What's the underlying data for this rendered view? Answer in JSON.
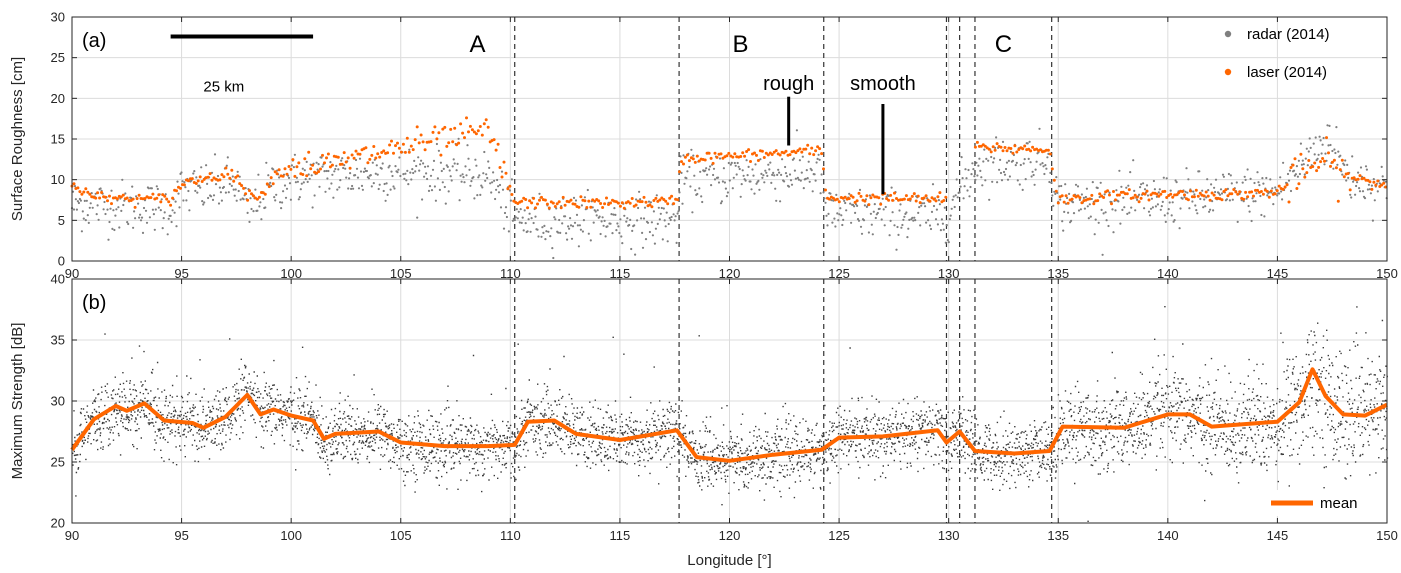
{
  "chart_data": [
    {
      "type": "scatter",
      "panel_label": "(a)",
      "ylabel": "Surface Roughness [cm]",
      "xlim": [
        90,
        150
      ],
      "ylim": [
        0,
        30
      ],
      "xticks": [
        90,
        95,
        100,
        105,
        110,
        115,
        120,
        125,
        130,
        135,
        140,
        145,
        150
      ],
      "yticks": [
        0,
        5,
        10,
        15,
        20,
        25,
        30
      ],
      "grid": true,
      "legend_position": "top-right",
      "legend": [
        {
          "name": "radar (2014)",
          "color": "#7f7f7f"
        },
        {
          "name": "laser (2014)",
          "color": "#ff6600"
        }
      ],
      "region_labels": [
        {
          "text": "A",
          "x": 108.5,
          "y": 27.2
        },
        {
          "text": "B",
          "x": 120.5,
          "y": 27.2
        },
        {
          "text": "C",
          "x": 132.5,
          "y": 27.2
        }
      ],
      "annotations": [
        {
          "text": "rough",
          "x": 122.7,
          "y": 21.0,
          "line_x": 122.7,
          "line_from": 20.2,
          "line_to": 14.2
        },
        {
          "text": "smooth",
          "x": 127.0,
          "y": 21.0,
          "line_x": 127.0,
          "line_from": 19.3,
          "line_to": 8.2
        }
      ],
      "scale_bar": {
        "label": "25 km",
        "x0": 94.5,
        "x1": 101,
        "y": 27.6
      },
      "boundaries": [
        110.2,
        117.7,
        124.3,
        129.9,
        130.5,
        131.2,
        134.7
      ],
      "series": [
        {
          "name": "laser (2014)",
          "profile": [
            [
              90,
              9.6
            ],
            [
              91,
              7.8
            ],
            [
              93,
              7.6
            ],
            [
              94.5,
              7.6
            ],
            [
              95,
              9.5
            ],
            [
              96.5,
              10.5
            ],
            [
              97.5,
              10.7
            ],
            [
              98,
              7.8
            ],
            [
              98.8,
              8.6
            ],
            [
              99.2,
              10.5
            ],
            [
              100,
              11.6
            ],
            [
              102,
              11.9
            ],
            [
              103.5,
              13.0
            ],
            [
              105.5,
              14.3
            ],
            [
              107,
              14.8
            ],
            [
              108.5,
              15.8
            ],
            [
              109,
              16.0
            ],
            [
              110.2,
              7.2
            ],
            [
              114,
              7.1
            ],
            [
              117.6,
              7.3
            ],
            [
              117.8,
              12.6
            ],
            [
              121,
              13.0
            ],
            [
              124.2,
              13.6
            ],
            [
              124.4,
              7.8
            ],
            [
              127,
              7.7
            ],
            [
              129.8,
              7.6
            ],
            [
              131.3,
              14.0
            ],
            [
              133,
              13.8
            ],
            [
              134.6,
              13.7
            ],
            [
              135,
              7.5
            ],
            [
              137,
              7.9
            ],
            [
              140,
              8.2
            ],
            [
              143,
              8.2
            ],
            [
              145,
              8.5
            ],
            [
              146.5,
              11.3
            ],
            [
              147,
              12.5
            ],
            [
              148,
              10.5
            ],
            [
              149,
              9.8
            ],
            [
              150,
              9.3
            ]
          ]
        },
        {
          "name": "radar (2014)",
          "profile": [
            [
              90,
              7.0
            ],
            [
              94.5,
              6.5
            ],
            [
              95,
              8.5
            ],
            [
              97.5,
              9.5
            ],
            [
              98,
              6.0
            ],
            [
              99,
              9.0
            ],
            [
              100,
              10.0
            ],
            [
              102,
              10.5
            ],
            [
              105,
              11.0
            ],
            [
              109,
              10.5
            ],
            [
              110.2,
              5.0
            ],
            [
              117.6,
              5.0
            ],
            [
              117.8,
              10.0
            ],
            [
              124.2,
              11.0
            ],
            [
              124.4,
              5.8
            ],
            [
              129.8,
              5.5
            ],
            [
              131.3,
              12.0
            ],
            [
              134.6,
              12.5
            ],
            [
              135,
              7.0
            ],
            [
              140,
              7.5
            ],
            [
              145,
              8.5
            ],
            [
              146.5,
              13.0
            ],
            [
              147.3,
              15.0
            ],
            [
              148.2,
              10.5
            ],
            [
              150,
              9.0
            ]
          ]
        }
      ]
    },
    {
      "type": "scatter",
      "panel_label": "(b)",
      "ylabel": "Maximum Strength [dB]",
      "xlabel": "Longitude [°]",
      "xlim": [
        90,
        150
      ],
      "ylim": [
        20,
        40
      ],
      "xticks": [
        90,
        95,
        100,
        105,
        110,
        115,
        120,
        125,
        130,
        135,
        140,
        145,
        150
      ],
      "yticks": [
        20,
        25,
        30,
        35,
        40
      ],
      "grid": true,
      "legend_position": "bottom-right",
      "legend": [
        {
          "name": "mean",
          "color": "#ff6600"
        }
      ],
      "boundaries": [
        110.2,
        117.7,
        124.3,
        129.9,
        130.5,
        131.2,
        134.7
      ],
      "series": [
        {
          "name": "mean",
          "values": [
            [
              90,
              26.0
            ],
            [
              91,
              28.5
            ],
            [
              92,
              29.6
            ],
            [
              92.5,
              29.2
            ],
            [
              93.3,
              29.8
            ],
            [
              94.2,
              28.4
            ],
            [
              95.5,
              28.2
            ],
            [
              96,
              27.8
            ],
            [
              97,
              28.7
            ],
            [
              98,
              30.5
            ],
            [
              98.6,
              28.9
            ],
            [
              99.2,
              29.3
            ],
            [
              100,
              28.8
            ],
            [
              101,
              28.4
            ],
            [
              101.5,
              26.9
            ],
            [
              102,
              27.3
            ],
            [
              104,
              27.5
            ],
            [
              105,
              26.6
            ],
            [
              107,
              26.3
            ],
            [
              109,
              26.3
            ],
            [
              110.2,
              26.4
            ],
            [
              110.8,
              28.3
            ],
            [
              112,
              28.4
            ],
            [
              113,
              27.3
            ],
            [
              115,
              26.8
            ],
            [
              117.6,
              27.6
            ],
            [
              118.5,
              25.4
            ],
            [
              120,
              25.1
            ],
            [
              122,
              25.6
            ],
            [
              124.2,
              26.0
            ],
            [
              125,
              27.0
            ],
            [
              127,
              27.1
            ],
            [
              129.5,
              27.6
            ],
            [
              129.9,
              26.6
            ],
            [
              130.5,
              27.5
            ],
            [
              131.2,
              25.9
            ],
            [
              133,
              25.7
            ],
            [
              134.6,
              25.9
            ],
            [
              135.2,
              27.9
            ],
            [
              138,
              27.8
            ],
            [
              140,
              28.9
            ],
            [
              141,
              28.9
            ],
            [
              142,
              27.9
            ],
            [
              145,
              28.3
            ],
            [
              146,
              29.9
            ],
            [
              146.6,
              32.6
            ],
            [
              147.2,
              30.4
            ],
            [
              148,
              28.9
            ],
            [
              149,
              28.8
            ],
            [
              150,
              29.7
            ]
          ]
        },
        {
          "name": "",
          "scatter_description_std": 1.3
        }
      ]
    }
  ]
}
